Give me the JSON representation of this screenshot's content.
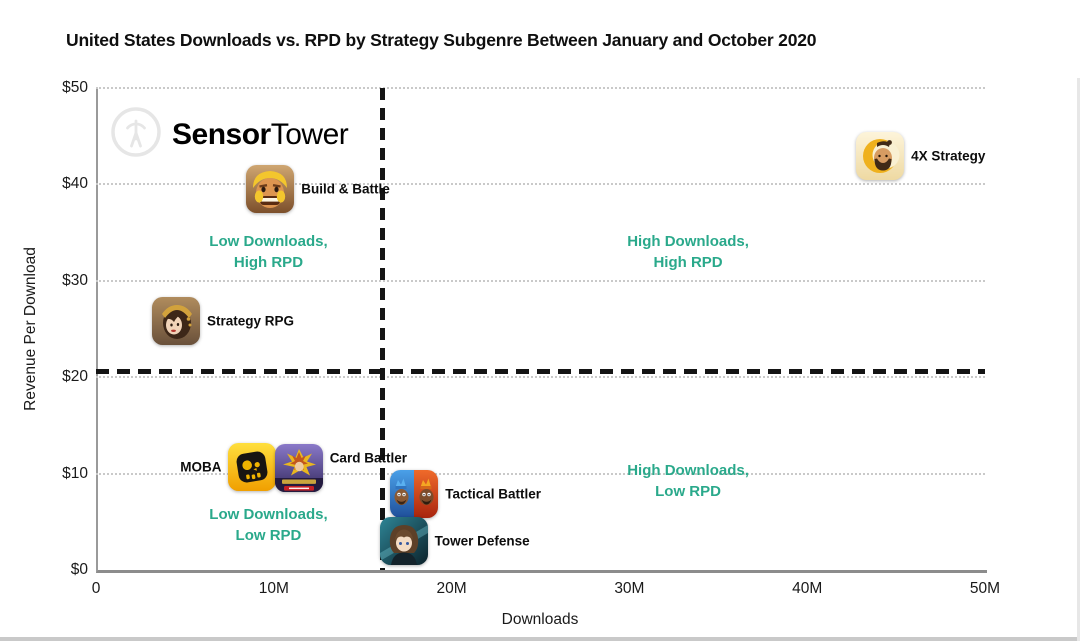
{
  "watermark": {
    "brand_bold": "Sensor",
    "brand_light": "Tower",
    "color": "#e6e6e6"
  },
  "chart_data": {
    "type": "scatter",
    "title": "United States Downloads vs. RPD by Strategy Subgenre Between January and October 2020",
    "xlabel": "Downloads",
    "ylabel": "Revenue Per Download",
    "xlim_millions": [
      0,
      50
    ],
    "ylim_usd": [
      0,
      50
    ],
    "grid": "dotted horizontal gridlines every $10",
    "legend": "none",
    "colors": {
      "quadrant_label": "#2aa98b",
      "title_text": "#0f0f0f",
      "axis_line": "#8c8c8c",
      "gridline": "#c9c9c9",
      "divider": "#141414",
      "watermark": "#e6e6e6"
    },
    "xticks": [
      {
        "value": 0,
        "label": "0"
      },
      {
        "value": 10,
        "label": "10M"
      },
      {
        "value": 20,
        "label": "20M"
      },
      {
        "value": 30,
        "label": "30M"
      },
      {
        "value": 40,
        "label": "40M"
      },
      {
        "value": 50,
        "label": "50M"
      }
    ],
    "yticks": [
      {
        "value": 0,
        "label": "$0"
      },
      {
        "value": 10,
        "label": "$10"
      },
      {
        "value": 20,
        "label": "$20"
      },
      {
        "value": 30,
        "label": "$30"
      },
      {
        "value": 40,
        "label": "$40"
      },
      {
        "value": 50,
        "label": "$50"
      }
    ],
    "dividers": {
      "x_millions": 16.1,
      "y_usd": 20.6,
      "style": "bold black dashed quadrant dividers"
    },
    "quadrant_labels": [
      {
        "lines": [
          "Low Downloads,",
          "High RPD"
        ],
        "x_millions": 9.7,
        "y_usd": 33.0
      },
      {
        "lines": [
          "High Downloads,",
          "High RPD"
        ],
        "x_millions": 33.3,
        "y_usd": 33.0
      },
      {
        "lines": [
          "Low Downloads,",
          "Low RPD"
        ],
        "x_millions": 9.7,
        "y_usd": 4.7
      },
      {
        "lines": [
          "High Downloads,",
          "Low RPD"
        ],
        "x_millions": 33.3,
        "y_usd": 9.2
      }
    ],
    "points": [
      {
        "label": "Build & Battle",
        "x_millions": 9.8,
        "y_usd": 39.5,
        "icon": "build-battle-app-icon",
        "label_side": "right"
      },
      {
        "label": "Strategy RPG",
        "x_millions": 4.5,
        "y_usd": 25.8,
        "icon": "strategy-rpg-app-icon",
        "label_side": "right"
      },
      {
        "label": "MOBA",
        "x_millions": 8.8,
        "y_usd": 10.7,
        "icon": "moba-app-icon",
        "label_side": "left"
      },
      {
        "label": "Card Battler",
        "x_millions": 11.4,
        "y_usd": 10.6,
        "icon": "card-battler-app-icon",
        "label_side": "right",
        "label_offset_y": -10
      },
      {
        "label": "Tactical Battler",
        "x_millions": 17.9,
        "y_usd": 7.9,
        "icon": "tactical-battler-app-icon",
        "label_side": "right"
      },
      {
        "label": "Tower Defense",
        "x_millions": 17.3,
        "y_usd": 3.0,
        "icon": "tower-defense-app-icon",
        "label_side": "right"
      },
      {
        "label": "4X Strategy",
        "x_millions": 44.1,
        "y_usd": 42.9,
        "icon": "4x-strategy-app-icon",
        "label_side": "right"
      }
    ]
  }
}
